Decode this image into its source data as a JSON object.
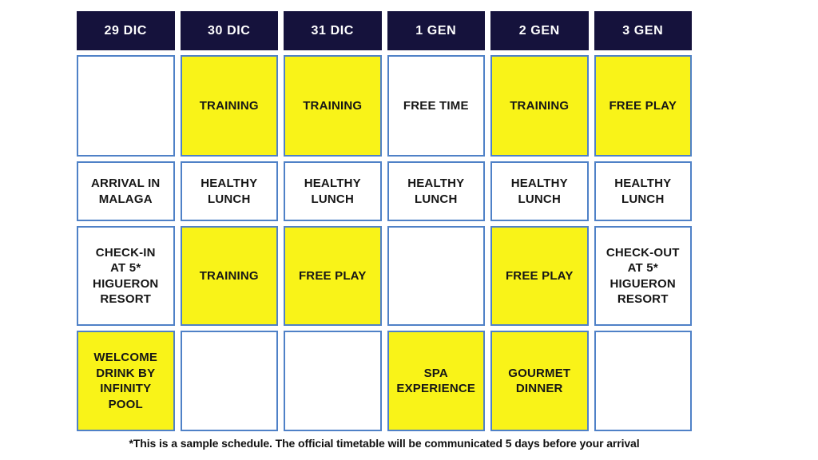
{
  "schedule": {
    "columns": [
      "29 DIC",
      "30 DIC",
      "31 DIC",
      "1 GEN",
      "2 GEN",
      "3 GEN"
    ],
    "rows": [
      {
        "cells": [
          {
            "text": "",
            "highlighted": false
          },
          {
            "text": "TRAINING",
            "highlighted": true
          },
          {
            "text": "TRAINING",
            "highlighted": true
          },
          {
            "text": "FREE TIME",
            "highlighted": false
          },
          {
            "text": "TRAINING",
            "highlighted": true
          },
          {
            "text": "FREE PLAY",
            "highlighted": true
          }
        ]
      },
      {
        "cells": [
          {
            "text": "ARRIVAL IN\nMALAGA",
            "highlighted": false
          },
          {
            "text": "HEALTHY\nLUNCH",
            "highlighted": false
          },
          {
            "text": "HEALTHY\nLUNCH",
            "highlighted": false
          },
          {
            "text": "HEALTHY\nLUNCH",
            "highlighted": false
          },
          {
            "text": "HEALTHY\nLUNCH",
            "highlighted": false
          },
          {
            "text": "HEALTHY\nLUNCH",
            "highlighted": false
          }
        ]
      },
      {
        "cells": [
          {
            "text": "CHECK-IN\nAT 5*\nHIGUERON\nRESORT",
            "highlighted": false
          },
          {
            "text": "TRAINING",
            "highlighted": true
          },
          {
            "text": "FREE PLAY",
            "highlighted": true
          },
          {
            "text": "",
            "highlighted": false
          },
          {
            "text": "FREE PLAY",
            "highlighted": true
          },
          {
            "text": "CHECK-OUT\nAT 5*\nHIGUERON\nRESORT",
            "highlighted": false
          }
        ]
      },
      {
        "cells": [
          {
            "text": "WELCOME\nDRINK BY\nINFINITY\nPOOL",
            "highlighted": true
          },
          {
            "text": "",
            "highlighted": false
          },
          {
            "text": "",
            "highlighted": false
          },
          {
            "text": "SPA\nEXPERIENCE",
            "highlighted": true
          },
          {
            "text": "GOURMET\nDINNER",
            "highlighted": true
          },
          {
            "text": "",
            "highlighted": false
          }
        ]
      }
    ]
  },
  "footer_note": "*This is a sample schedule. The official timetable will be communicated 5 days before your arrival",
  "colors": {
    "header_bg": "#15123c",
    "header_text": "#ffffff",
    "highlight_yellow": "#f9f318",
    "cell_border": "#4f81c7",
    "cell_text": "#161616"
  }
}
